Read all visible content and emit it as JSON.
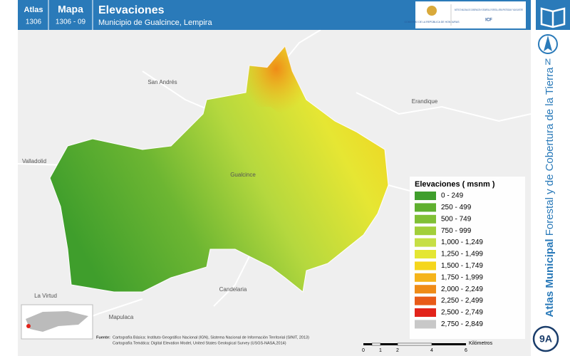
{
  "header": {
    "atlas_label": "Atlas",
    "atlas_number": "1306",
    "map_label": "Mapa",
    "map_number": "1306 - 09",
    "title": "Elevaciones",
    "subtitle": "Municipio de Gualcince, Lempira",
    "logo_left": "GOBIERNO DE LA REPÚBLICA DE HONDURAS",
    "logo_right": "INSTITUTO NACIONAL DE CONSERVACIÓN Y DESARROLLO FORESTAL, ÁREAS PROTEGIDAS Y VIDA SILVESTRE",
    "logo_acronym": "ICF"
  },
  "sidebar": {
    "north": "N",
    "series_bold": "Atlas Municipal",
    "series_rest": "Forestal y de Cobertura de la Tierra",
    "sheet": "9A"
  },
  "map": {
    "places": [
      "San Andrés",
      "Erandique",
      "Valladolid",
      "Gualcince",
      "La Virtud",
      "Candelaria",
      "Mapulaca"
    ]
  },
  "legend": {
    "title": "Elevaciones ( msnm )",
    "items": [
      {
        "label": "0 - 249",
        "color": "#3f9e2c"
      },
      {
        "label": "250 - 499",
        "color": "#5fb02f"
      },
      {
        "label": "500 - 749",
        "color": "#80c035"
      },
      {
        "label": "750 - 999",
        "color": "#a2cf3a"
      },
      {
        "label": "1,000 - 1,249",
        "color": "#c6df45"
      },
      {
        "label": "1,250 - 1,499",
        "color": "#e4e633"
      },
      {
        "label": "1,500 - 1,749",
        "color": "#f5d61c"
      },
      {
        "label": "1,750 - 1,999",
        "color": "#f5b41a"
      },
      {
        "label": "2,000 - 2,249",
        "color": "#ef8b17"
      },
      {
        "label": "2,250 - 2,499",
        "color": "#e85a18"
      },
      {
        "label": "2,500 - 2,749",
        "color": "#e2231a"
      },
      {
        "label": "2,750 - 2,849",
        "color": "#c8c8c8"
      }
    ]
  },
  "source": {
    "label": "Fuente:",
    "line1": "Cartografía Básica: Instituto Geográfico Nacional (IGN), Sistema Nacional de Información Territorial (SINIT, 2013)",
    "line2": "Cartografía Temática: Digital Elevation Model, United States Geological Survey (USGS-NASA,2014)"
  },
  "scale_bar": {
    "ticks": [
      "0",
      "1",
      "2",
      "4",
      "6"
    ],
    "unit": "Kilómetros"
  }
}
